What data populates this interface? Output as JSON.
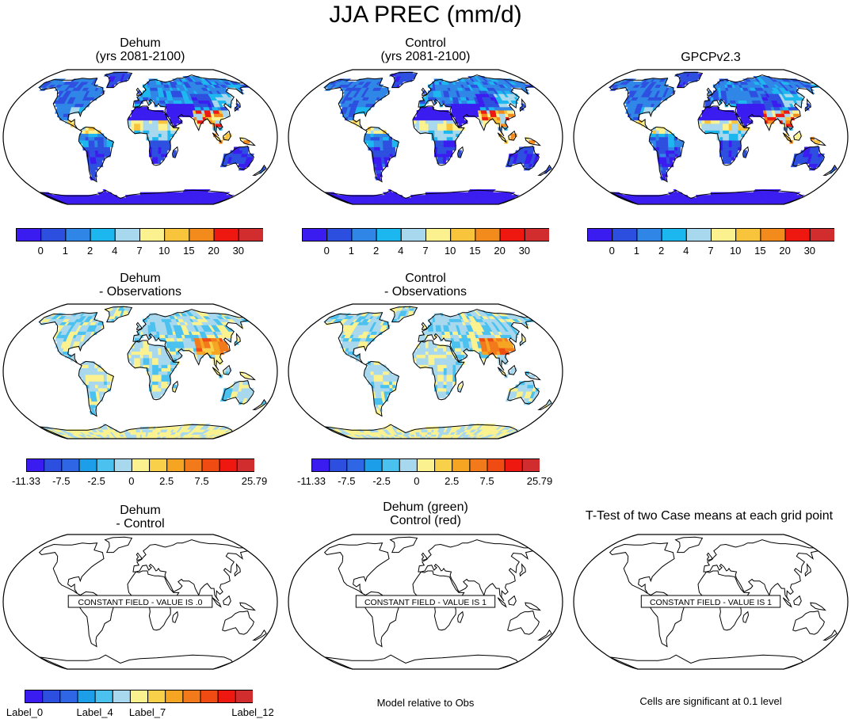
{
  "figure": {
    "title": "JJA PREC (mm/d)"
  },
  "colors": {
    "precip": [
      "#3a1cf0",
      "#2d4fe0",
      "#2f86e6",
      "#1cb7ef",
      "#a8d8ee",
      "#fbf28f",
      "#f8c43b",
      "#f38a1c",
      "#ee1811",
      "#d12c2e"
    ],
    "diff": [
      "#3a1cf0",
      "#2d4fe0",
      "#2f66e6",
      "#1c9fe8",
      "#4bc1ef",
      "#a8d8ee",
      "#fbf28f",
      "#f8d04a",
      "#f6a523",
      "#f37a1b",
      "#ef4b12",
      "#ee1811",
      "#d12c2e"
    ],
    "generic": [
      "#3a1cf0",
      "#2d4fe0",
      "#2f66e6",
      "#1c9fe8",
      "#4bc1ef",
      "#a8d8ee",
      "#fbf28f",
      "#f8d04a",
      "#f6a523",
      "#f37a1b",
      "#ef4b12",
      "#ee1811",
      "#d12c2e"
    ]
  },
  "panels": {
    "dehum": {
      "title_line1": "Dehum",
      "title_line2": "(yrs 2081-2100)"
    },
    "control": {
      "title_line1": "Control",
      "title_line2": "(yrs 2081-2100)"
    },
    "obs": {
      "title_line1": "GPCPv2.3"
    },
    "dehum_obs": {
      "title_line1": "Dehum",
      "title_line2": "- Observations"
    },
    "control_obs": {
      "title_line1": "Control",
      "title_line2": "- Observations"
    },
    "dehum_ctrl": {
      "title_line1": "Dehum",
      "title_line2": "- Control",
      "notice": "CONSTANT FIELD - VALUE IS .0"
    },
    "overlay": {
      "title_line1": "Dehum (green)",
      "title_line2": "Control (red)",
      "notice": "CONSTANT FIELD - VALUE IS 1",
      "footer": "Model relative to Obs"
    },
    "ttest": {
      "title_line1": "T-Test of two Case means at each grid point",
      "notice": "CONSTANT FIELD - VALUE IS 1",
      "footer": "Cells are significant at 0.1 level"
    }
  },
  "colorbars": {
    "precip_labels": [
      "0",
      "1",
      "2",
      "4",
      "7",
      "10",
      "15",
      "20",
      "30"
    ],
    "diff_labels": [
      "-11.33",
      "-7.5",
      "-2.5",
      "0",
      "2.5",
      "7.5",
      "25.79"
    ],
    "generic_labels": [
      "Label_0",
      "Label_4",
      "Label_7",
      "Label_12"
    ]
  }
}
